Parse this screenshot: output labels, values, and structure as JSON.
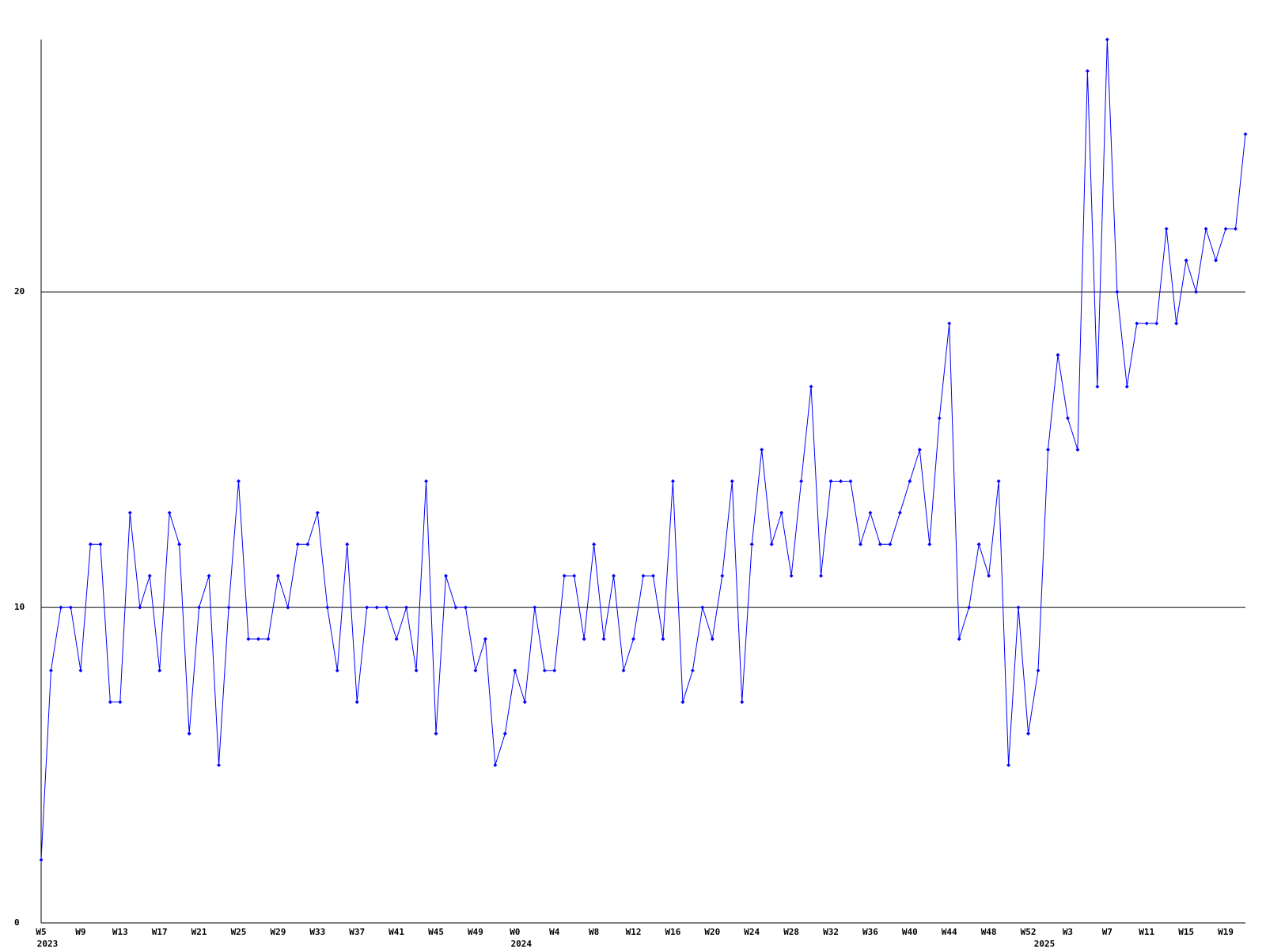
{
  "chart_data": {
    "type": "line",
    "categories": [
      "W5",
      null,
      null,
      null,
      "W9",
      null,
      null,
      null,
      "W13",
      null,
      null,
      null,
      "W17",
      null,
      null,
      null,
      "W21",
      null,
      null,
      null,
      "W25",
      null,
      null,
      null,
      "W29",
      null,
      null,
      null,
      "W33",
      null,
      null,
      null,
      "W37",
      null,
      null,
      null,
      "W41",
      null,
      null,
      null,
      "W45",
      null,
      null,
      null,
      "W49",
      null,
      null,
      null,
      "W0",
      null,
      null,
      null,
      "W4",
      null,
      null,
      null,
      "W8",
      null,
      null,
      null,
      "W12",
      null,
      null,
      null,
      "W16",
      null,
      null,
      null,
      "W20",
      null,
      null,
      null,
      "W24",
      null,
      null,
      null,
      "W28",
      null,
      null,
      null,
      "W32",
      null,
      null,
      null,
      "W36",
      null,
      null,
      null,
      "W40",
      null,
      null,
      null,
      "W44",
      null,
      null,
      null,
      "W48",
      null,
      null,
      null,
      "W52",
      null,
      null,
      null,
      "W3",
      null,
      null,
      null,
      "W7",
      null,
      null,
      null,
      "W11",
      null,
      null,
      null,
      "W15",
      null,
      null,
      null,
      "W19",
      null,
      null
    ],
    "year_categories": [
      "2023",
      null,
      null,
      null,
      null,
      null,
      null,
      null,
      null,
      null,
      null,
      null,
      null,
      null,
      null,
      null,
      null,
      null,
      null,
      null,
      null,
      null,
      null,
      null,
      null,
      null,
      null,
      null,
      null,
      null,
      null,
      null,
      null,
      null,
      null,
      null,
      null,
      null,
      null,
      null,
      null,
      null,
      null,
      null,
      null,
      null,
      null,
      null,
      "2024",
      null,
      null,
      null,
      null,
      null,
      null,
      null,
      null,
      null,
      null,
      null,
      null,
      null,
      null,
      null,
      null,
      null,
      null,
      null,
      null,
      null,
      null,
      null,
      null,
      null,
      null,
      null,
      null,
      null,
      null,
      null,
      null,
      null,
      null,
      null,
      null,
      null,
      null,
      null,
      null,
      null,
      null,
      null,
      null,
      null,
      null,
      null,
      null,
      null,
      null,
      null,
      null,
      "2025",
      null,
      null,
      null,
      null,
      null,
      null,
      null,
      null,
      null,
      null,
      null,
      null,
      null,
      null,
      null,
      null,
      null,
      null,
      null,
      null,
      null
    ],
    "series": [
      {
        "color": "#0000ff",
        "values": [
          2,
          8,
          10,
          10,
          8,
          12,
          12,
          7,
          7,
          13,
          10,
          11,
          8,
          13,
          12,
          6,
          10,
          11,
          5,
          10,
          14,
          9,
          9,
          9,
          11,
          10,
          12,
          12,
          13,
          10,
          8,
          12,
          7,
          10,
          10,
          10,
          9,
          10,
          8,
          14,
          6,
          11,
          10,
          10,
          8,
          9,
          5,
          6,
          8,
          7,
          10,
          8,
          8,
          11,
          11,
          9,
          12,
          9,
          11,
          8,
          9,
          11,
          11,
          9,
          14,
          7,
          8,
          10,
          9,
          11,
          14,
          7,
          12,
          15,
          12,
          13,
          11,
          14,
          17,
          11,
          14,
          14,
          14,
          12,
          13,
          12,
          12,
          13,
          14,
          15,
          12,
          16,
          19,
          9,
          10,
          12,
          11,
          14,
          5,
          10,
          6,
          8,
          15,
          18,
          16,
          15,
          27,
          17,
          28,
          20,
          17,
          19,
          19,
          19,
          22,
          19,
          21,
          20,
          22,
          21,
          22,
          22,
          25
        ]
      }
    ],
    "ylim": [
      0,
      28
    ],
    "yticks": [
      0,
      10,
      20
    ],
    "grid": true
  }
}
